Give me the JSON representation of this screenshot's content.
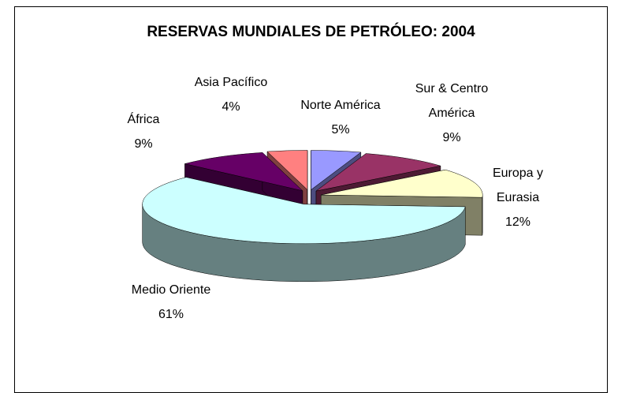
{
  "chart_data": {
    "type": "pie",
    "title": "RESERVAS MUNDIALES DE PETRÓLEO: 2004",
    "categories": [
      "Norte América",
      "Sur & Centro América",
      "Europa y Eurasia",
      "Medio Oriente",
      "África",
      "Asia Pacífico"
    ],
    "values": [
      5,
      9,
      12,
      61,
      9,
      4
    ],
    "value_labels": [
      "5%",
      "9%",
      "12%",
      "61%",
      "9%",
      "4%"
    ],
    "colors": [
      "#9999ff",
      "#993366",
      "#ffffcc",
      "#ccffff",
      "#660066",
      "#ff8080"
    ]
  }
}
